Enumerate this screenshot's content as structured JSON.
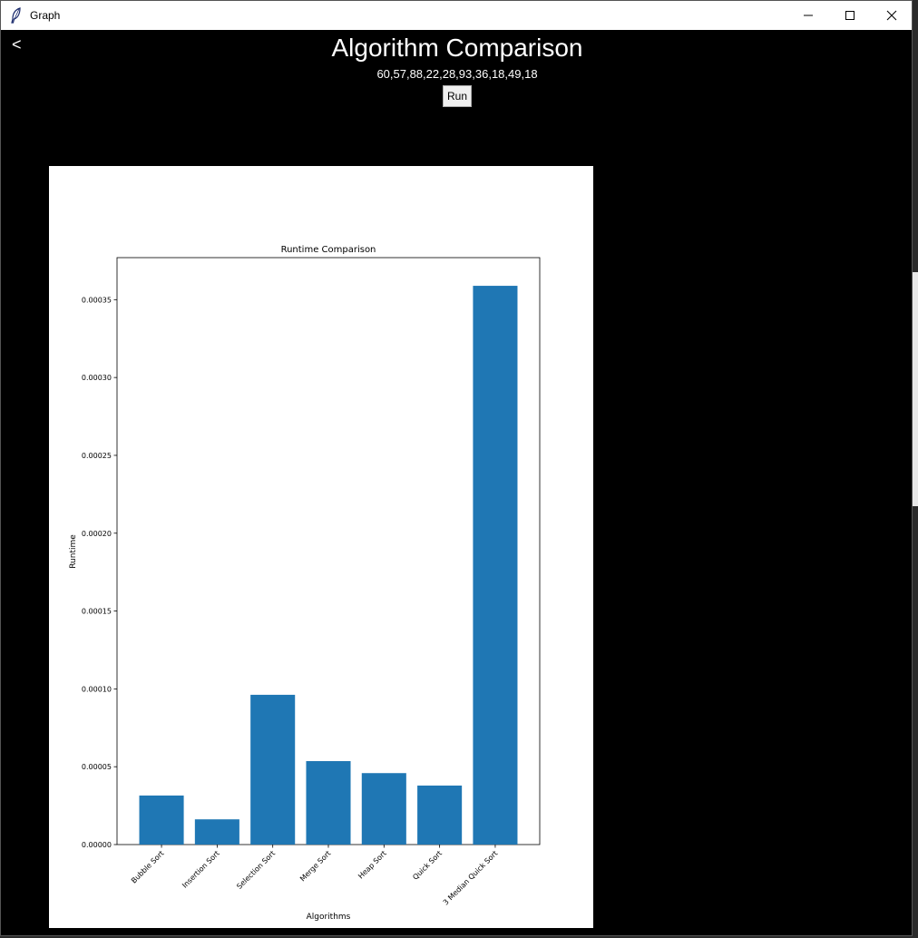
{
  "window": {
    "title": "Graph",
    "minimize_icon": "minimize-icon",
    "maximize_icon": "maximize-icon",
    "close_icon": "close-icon"
  },
  "header": {
    "back_label": "<",
    "title": "Algorithm Comparison",
    "input_values": "60,57,88,22,28,93,36,18,49,18",
    "run_label": "Run"
  },
  "chart_data": {
    "type": "bar",
    "title": "Runtime Comparison",
    "xlabel": "Algorithms",
    "ylabel": "Runtime",
    "categories": [
      "Bubble Sort",
      "Insertion Sort",
      "Selection Sort",
      "Merge Sort",
      "Heap Sort",
      "Quick Sort",
      "3 Median Quick Sort"
    ],
    "values": [
      3.15e-05,
      1.62e-05,
      9.62e-05,
      5.36e-05,
      4.59e-05,
      3.79e-05,
      0.0003589
    ],
    "ylim": [
      0,
      0.000377
    ],
    "yticks": [
      "0.00000",
      "0.00005",
      "0.00010",
      "0.00015",
      "0.00020",
      "0.00025",
      "0.00030",
      "0.00035"
    ],
    "ytick_values": [
      0,
      5e-05,
      0.0001,
      0.00015,
      0.0002,
      0.00025,
      0.0003,
      0.00035
    ],
    "bar_color": "#1f77b4",
    "grid": false
  }
}
